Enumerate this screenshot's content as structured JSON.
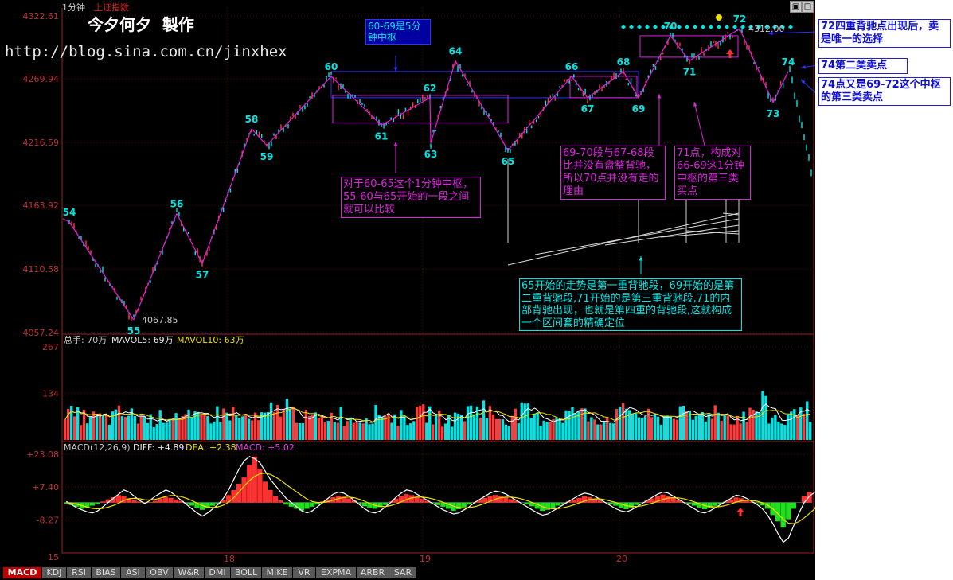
{
  "header": {
    "period": "1分钟",
    "index_name": "上证指数",
    "watermark_title": "今夕何夕  製作",
    "blog_url": "http://blog.sina.com.cn/jinxhex"
  },
  "price_axis": {
    "ticks": [
      "4322.61",
      "4269.94",
      "4216.59",
      "4163.92",
      "4110.58",
      "4057.24"
    ]
  },
  "volume_panel": {
    "legend_total": "总手: 70万",
    "legend_mavol5": "MAVOL5: 69万",
    "legend_mavol10": "MAVOL10: 63万",
    "ticks": [
      "267",
      "134"
    ]
  },
  "macd_panel": {
    "legend_name": "MACD(12,26,9)",
    "legend_diff": "DIFF: +4.89",
    "legend_dea": "DEA: +2.38",
    "legend_macd": "MACD: +5.02",
    "ticks": [
      "+23.08",
      "+7.40",
      "-8.27",
      "15"
    ]
  },
  "date_labels": [
    "18",
    "19",
    "20"
  ],
  "tabs": [
    "MACD",
    "KDJ",
    "RSI",
    "BIAS",
    "ASI",
    "OBV",
    "W&R",
    "DMI",
    "BOLL",
    "MIKE",
    "VR",
    "EXPMA",
    "ARBR",
    "SAR"
  ],
  "colors": {
    "up": "#ff3b3b",
    "down": "#00e6e6",
    "stroke": "#e020e0",
    "pivot": "#3030ff",
    "axis": "#c03030",
    "label": "#00e6e6"
  },
  "chart_data": [
    {
      "type": "line",
      "title": "",
      "xlabel": "",
      "ylabel": "",
      "ylim": [
        4057.24,
        4322.61
      ],
      "stroke_points": [
        {
          "label": "54",
          "price": 4150
        },
        {
          "label": "55",
          "price": 4067.85
        },
        {
          "label": "56",
          "price": 4157
        },
        {
          "label": "57",
          "price": 4115
        },
        {
          "label": "58",
          "price": 4228
        },
        {
          "label": "59",
          "price": 4214
        },
        {
          "label": "60",
          "price": 4272
        },
        {
          "label": "61",
          "price": 4231
        },
        {
          "label": "62",
          "price": 4254
        },
        {
          "label": "63",
          "price": 4216
        },
        {
          "label": "64",
          "price": 4285
        },
        {
          "label": "65",
          "price": 4210
        },
        {
          "label": "66",
          "price": 4272
        },
        {
          "label": "67",
          "price": 4254
        },
        {
          "label": "68",
          "price": 4276
        },
        {
          "label": "69",
          "price": 4254
        },
        {
          "label": "70",
          "price": 4306
        },
        {
          "label": "71",
          "price": 4285
        },
        {
          "label": "72",
          "price": 4312.0
        },
        {
          "label": "73",
          "price": 4250
        },
        {
          "label": "74",
          "price": 4276
        }
      ],
      "point_annotations": {
        "low_price": "4067.85",
        "high_price": "4312.00"
      },
      "pivots": [
        {
          "name": "60-69",
          "low": 4254,
          "high": 4276
        },
        {
          "name": "60-65",
          "low": 4233,
          "high": 4256
        },
        {
          "name": "66-69",
          "low": 4254,
          "high": 4272
        },
        {
          "name": "70-72",
          "low": 4288,
          "high": 4306
        }
      ],
      "annotations": [
        "60-69是5分钟中枢",
        "对于60-65这个1分钟中枢，55-60与65开始的一段之间就可以比较",
        "69-70段与67-68段比并没有盘整背驰，所以70点并没有走的理由",
        "71点，构成对66-69这1分钟中枢的第三类买点",
        "65开始的走势是第一重背驰段，69开始的是第二重背驰段,71开始的是第三重背驰段,71的内部背驰出现，也就是第四重的背驰段,这就构成一个区间套的精确定位",
        "72四重背驰点出现后，卖是唯一的选择",
        "74第二类卖点",
        "74点又是69-72这个中枢的第三类卖点"
      ]
    },
    {
      "type": "bar",
      "title": "",
      "ylim": [
        0,
        267
      ],
      "volume_profile": [
        80,
        76,
        73,
        70,
        68,
        74,
        82,
        77,
        70,
        65,
        70,
        78,
        84,
        71,
        66,
        73,
        78,
        83,
        87,
        71,
        68,
        64,
        72,
        92,
        110,
        85,
        76,
        70,
        66,
        75,
        82,
        71,
        67,
        72,
        81,
        90,
        78,
        70,
        73,
        79,
        86,
        74,
        69,
        66,
        79,
        93,
        108,
        86,
        74,
        70,
        78,
        87,
        75,
        68,
        71,
        77,
        84,
        96,
        81,
        73,
        68,
        75,
        86,
        102,
        80,
        72,
        69,
        76,
        92,
        79,
        71,
        80,
        95,
        84,
        76,
        70,
        81,
        97,
        113,
        72,
        61,
        74,
        128,
        90
      ]
    },
    {
      "type": "area",
      "title": "",
      "ylim": [
        -23.0,
        23.08
      ],
      "macd_hist": [
        -0.5,
        -1.2,
        -2,
        -3,
        -2.5,
        -1.5,
        -0.8,
        0.5,
        1.5,
        2.5,
        3.5,
        3,
        2,
        1.2,
        0.5,
        -0.3,
        0.2,
        0.8,
        1.8,
        2.6,
        2.2,
        1.5,
        0.8,
        -0.5,
        -1.5,
        -2.5,
        -3.5,
        -2.8,
        -1.6,
        -0.5,
        1.2,
        3.5,
        6,
        9,
        12,
        18,
        22,
        16,
        10,
        6,
        3,
        1,
        -1,
        -2,
        -3,
        -3.8,
        -3,
        -2,
        -1,
        0.5,
        1.5,
        2.5,
        3.2,
        2.8,
        2,
        1,
        -0.5,
        -1.8,
        -2.6,
        -3,
        -2.2,
        -1.2,
        0.5,
        1.8,
        3,
        4,
        3.5,
        2.8,
        1.8,
        0.8,
        -0.3,
        -1.2,
        -2,
        -3,
        -4,
        -3.2,
        -2.2,
        -1,
        0.3,
        1.2,
        2.2,
        3,
        3.6,
        3,
        2.4,
        1.6,
        0.8,
        0,
        -0.8,
        -1.8,
        -3,
        -4,
        -3.5,
        -2.5,
        -1.5,
        -0.5,
        0.6,
        1.4,
        2.2,
        3,
        2.6,
        1.8,
        1,
        0,
        -0.6,
        -1.5,
        -2.5,
        -3.2,
        -2.4,
        -1.2,
        -0.2,
        1,
        2,
        3,
        3.8,
        3,
        2,
        1.2,
        0.2,
        -0.6,
        -1.5,
        -2.4,
        -3.2,
        -2.6,
        -1.6,
        -0.6,
        0.5,
        1.5,
        2.4,
        2,
        1.2,
        0.4,
        -0.3,
        -1.4,
        -3,
        -6,
        -9,
        -12,
        -8,
        -3,
        0,
        3,
        5.02
      ],
      "diff": [
        0.5,
        -1,
        -2.5,
        -3.5,
        -4.5,
        -5,
        -4,
        -2,
        0,
        2,
        4,
        6,
        5,
        3,
        1,
        -0.5,
        1,
        3,
        4.5,
        6,
        5,
        3,
        1,
        -1,
        -3,
        -5,
        -6.5,
        -5,
        -3,
        -1,
        2,
        6,
        11,
        16,
        20,
        22,
        21,
        19,
        15,
        11,
        8,
        5,
        2,
        0,
        -2,
        -4,
        -5,
        -4,
        -2,
        0,
        2,
        4,
        5,
        4.5,
        3,
        1,
        -1,
        -3,
        -4.5,
        -5,
        -4,
        -2,
        0,
        2.5,
        4.5,
        6,
        5.5,
        4,
        2.5,
        1,
        -0.5,
        -2,
        -3.5,
        -4.5,
        -5.5,
        -5,
        -3.5,
        -2,
        0,
        1.5,
        3,
        4.5,
        5.5,
        5,
        4,
        2.5,
        1,
        -0.5,
        -2,
        -3.5,
        -5,
        -6,
        -5.5,
        -4,
        -2.5,
        -1,
        0.5,
        2,
        3.5,
        4.5,
        4,
        3,
        1.5,
        0,
        -1.5,
        -3,
        -4,
        -4.5,
        -3.5,
        -2,
        -0.5,
        1,
        2.5,
        4,
        5,
        4.5,
        3,
        1.5,
        0,
        -1.5,
        -3,
        -4.5,
        -5,
        -4,
        -2.5,
        -1,
        0.5,
        2,
        3.5,
        3,
        2,
        0.5,
        -1,
        -3,
        -6,
        -10,
        -15,
        -19,
        -17,
        -11,
        -5,
        0,
        3,
        4.89
      ],
      "dea": [
        0,
        -0.3,
        -0.8,
        -1.5,
        -2.2,
        -2.8,
        -3,
        -2.8,
        -2.2,
        -1.4,
        -0.3,
        1,
        1.8,
        2,
        1.8,
        1.3,
        1.2,
        1.5,
        2.1,
        2.9,
        3.3,
        3.2,
        2.8,
        2,
        0.9,
        -0.3,
        -1.5,
        -2.2,
        -2.4,
        -2.1,
        -1.3,
        0.1,
        2.3,
        5,
        8,
        10.5,
        12.5,
        13.8,
        14,
        13.5,
        12.2,
        10.6,
        8.7,
        6.9,
        5.1,
        3.3,
        1.6,
        0.5,
        0,
        0,
        0.4,
        1.1,
        1.9,
        2.4,
        2.6,
        2.3,
        1.6,
        0.6,
        -0.5,
        -1.4,
        -1.9,
        -1.9,
        -1.5,
        -0.7,
        0.3,
        1.4,
        2.2,
        2.6,
        2.6,
        2.3,
        1.7,
        1,
        0.1,
        -0.8,
        -1.8,
        -2.4,
        -2.6,
        -2.5,
        -2,
        -1.3,
        -0.4,
        0.6,
        1.6,
        2.3,
        2.6,
        2.6,
        2.3,
        1.7,
        0.9,
        0,
        -1,
        -2,
        -2.7,
        -3,
        -2.9,
        -2.5,
        -1.9,
        -1.1,
        -0.2,
        0.7,
        1.4,
        1.7,
        1.7,
        1.3,
        0.7,
        0,
        -0.8,
        -1.5,
        -1.9,
        -1.9,
        -1.6,
        -1,
        -0.3,
        0.6,
        1.5,
        2.1,
        2.3,
        2.2,
        1.8,
        1.1,
        0.3,
        -0.6,
        -1.5,
        -2,
        -2.1,
        -1.9,
        -1.4,
        -0.7,
        0.2,
        0.8,
        1.1,
        1,
        0.6,
        -0.1,
        -1.2,
        -3,
        -5.4,
        -8.1,
        -9.9,
        -10.1,
        -9.1,
        -7.3,
        -5.2,
        -3,
        2.38
      ]
    }
  ]
}
